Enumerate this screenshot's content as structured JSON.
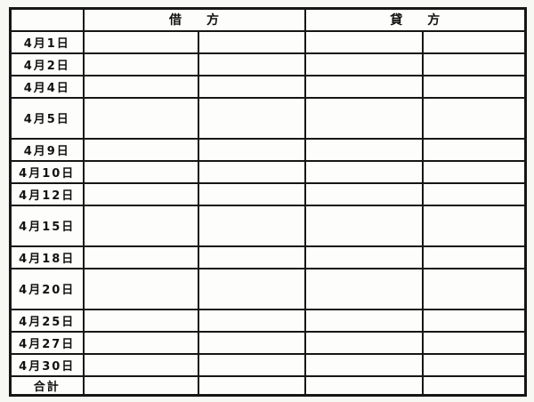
{
  "page": {
    "kind": "scanned ledger form",
    "paper_color": "#f7f7f4",
    "cell_color": "#fdfdfb",
    "line_color": "#161616",
    "text_color": "#111111"
  },
  "table": {
    "header": {
      "date_corner": "",
      "debit_label": "借　方",
      "credit_label": "貸　方"
    },
    "entry_subcolumns_per_side": 2,
    "rows": [
      {
        "label": "4月1日",
        "size": "normal"
      },
      {
        "label": "4月2日",
        "size": "normal"
      },
      {
        "label": "4月4日",
        "size": "normal"
      },
      {
        "label": "4月5日",
        "size": "tall"
      },
      {
        "label": "4月9日",
        "size": "normal"
      },
      {
        "label": "4月10日",
        "size": "normal"
      },
      {
        "label": "4月12日",
        "size": "normal"
      },
      {
        "label": "4月15日",
        "size": "tall"
      },
      {
        "label": "4月18日",
        "size": "normal"
      },
      {
        "label": "4月20日",
        "size": "tall"
      },
      {
        "label": "4月25日",
        "size": "normal"
      },
      {
        "label": "4月27日",
        "size": "normal"
      },
      {
        "label": "4月30日",
        "size": "normal"
      },
      {
        "label": "合計",
        "size": "total"
      }
    ],
    "cell_values": []
  }
}
